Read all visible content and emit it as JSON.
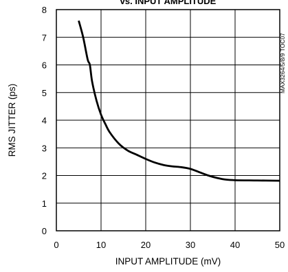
{
  "chart_data": {
    "type": "line",
    "title": "vs. INPUT AMPLITUDE",
    "xlabel": "INPUT AMPLITUDE (mV)",
    "ylabel": "RMS JITTER (ps)",
    "side_code": "MAX3264/5/8/9 TOC07",
    "xlim": [
      0,
      50
    ],
    "ylim": [
      0,
      8
    ],
    "xticks": [
      0,
      10,
      20,
      30,
      40,
      50
    ],
    "yticks": [
      0,
      1,
      2,
      3,
      4,
      5,
      6,
      7,
      8
    ],
    "grid": true,
    "series": [
      {
        "x": [
          5,
          6,
          7,
          7.5,
          8,
          9,
          10,
          11,
          12,
          14,
          16,
          18,
          20,
          22,
          24,
          26,
          28,
          30,
          32,
          34,
          36,
          38,
          40,
          45,
          50
        ],
        "y": [
          7.6,
          7.0,
          6.2,
          6.0,
          5.4,
          4.7,
          4.2,
          3.85,
          3.55,
          3.15,
          2.9,
          2.75,
          2.6,
          2.47,
          2.38,
          2.33,
          2.3,
          2.24,
          2.12,
          2.0,
          1.91,
          1.85,
          1.83,
          1.82,
          1.81
        ]
      }
    ]
  },
  "style": {
    "line_color": "#000000",
    "grid_color": "#000000",
    "background": "#ffffff"
  }
}
